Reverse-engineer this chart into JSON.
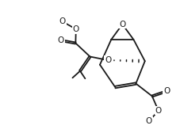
{
  "bg_color": "#ffffff",
  "line_color": "#1a1a1a",
  "line_width": 1.3,
  "figsize": [
    2.27,
    1.68
  ],
  "dpi": 100,
  "xlim": [
    0,
    10
  ],
  "ylim": [
    0,
    7.4
  ]
}
